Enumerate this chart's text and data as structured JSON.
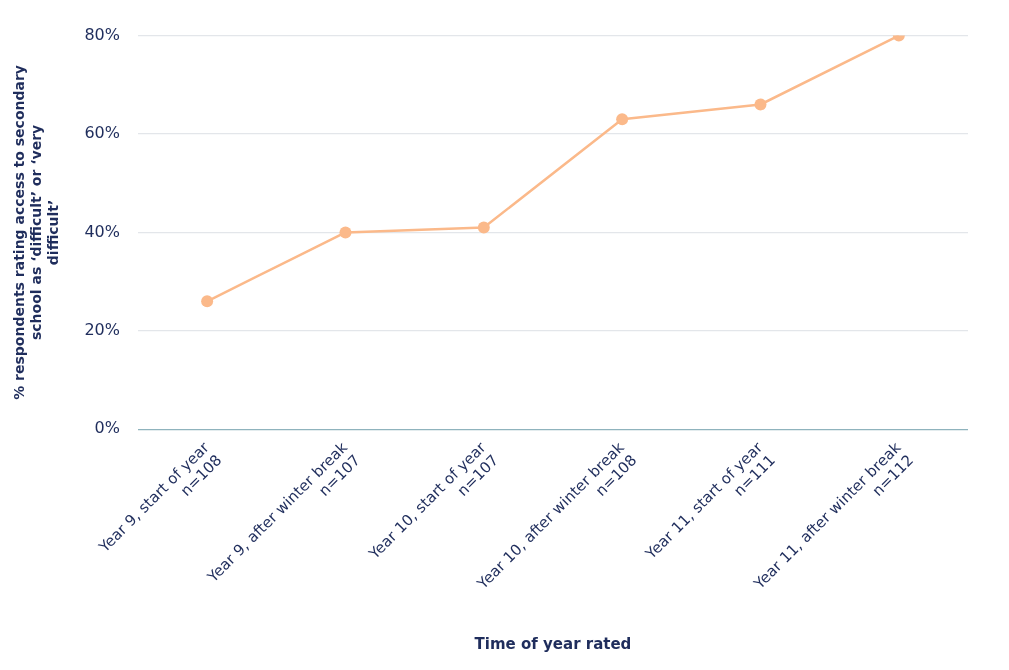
{
  "chart_data": {
    "type": "line",
    "xlabel": "Time of year rated",
    "ylabel": "% respondents rating access to secondary school as ‘difficult’ or ‘very difficult’",
    "categories": [
      "Year 9, start of year\nn=108",
      "Year 9, after winter break\nn=107",
      "Year 10, start of year\nn=107",
      "Year 10, after winter break\nn=108",
      "Year 11, start of year\nn=111",
      "Year 11, after winter break\nn=112"
    ],
    "series": [
      {
        "color": "#fbb98a",
        "values": [
          26,
          40,
          41,
          63,
          66,
          80
        ]
      }
    ],
    "ylim": [
      0,
      80
    ],
    "yticks": [
      {
        "value": 0,
        "label": "0%"
      },
      {
        "value": 20,
        "label": "20%"
      },
      {
        "value": 40,
        "label": "40%"
      },
      {
        "value": 60,
        "label": "60%"
      },
      {
        "value": 80,
        "label": "80%"
      }
    ],
    "grid": "y",
    "legend": false,
    "marker": "circle",
    "line_style": "solid"
  }
}
